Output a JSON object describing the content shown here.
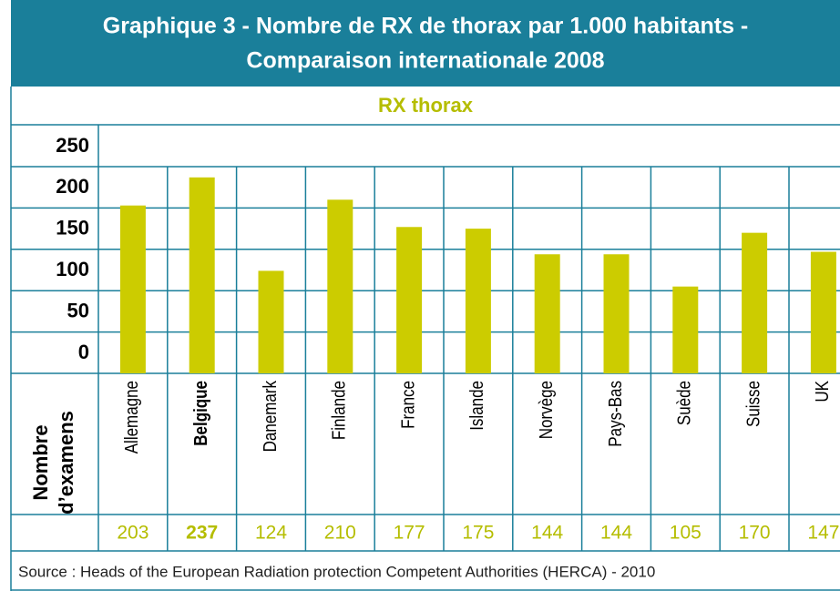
{
  "chart_data": {
    "type": "bar",
    "title": [
      "Graphique 3 - Nombre de RX de thorax par 1.000 habitants -",
      "Comparaison internationale 2008"
    ],
    "subtitle": "RX thorax",
    "y_label": [
      "Nombre",
      "d’examens"
    ],
    "categories": [
      "Allemagne",
      "Belgique",
      "Danemark",
      "Finlande",
      "France",
      "Islande",
      "Norvège",
      "Pays-Bas",
      "Suède",
      "Suisse",
      "UK"
    ],
    "values": [
      203,
      237,
      124,
      210,
      177,
      175,
      144,
      144,
      105,
      170,
      147
    ],
    "highlight": "Belgique",
    "color": "#cccc00",
    "ylim": [
      0,
      250
    ],
    "yticks": [
      0,
      50,
      100,
      150,
      200,
      250
    ],
    "grid": true,
    "source": "Source : Heads of the European Radiation protection Competent Authorities (HERCA) - 2010"
  }
}
